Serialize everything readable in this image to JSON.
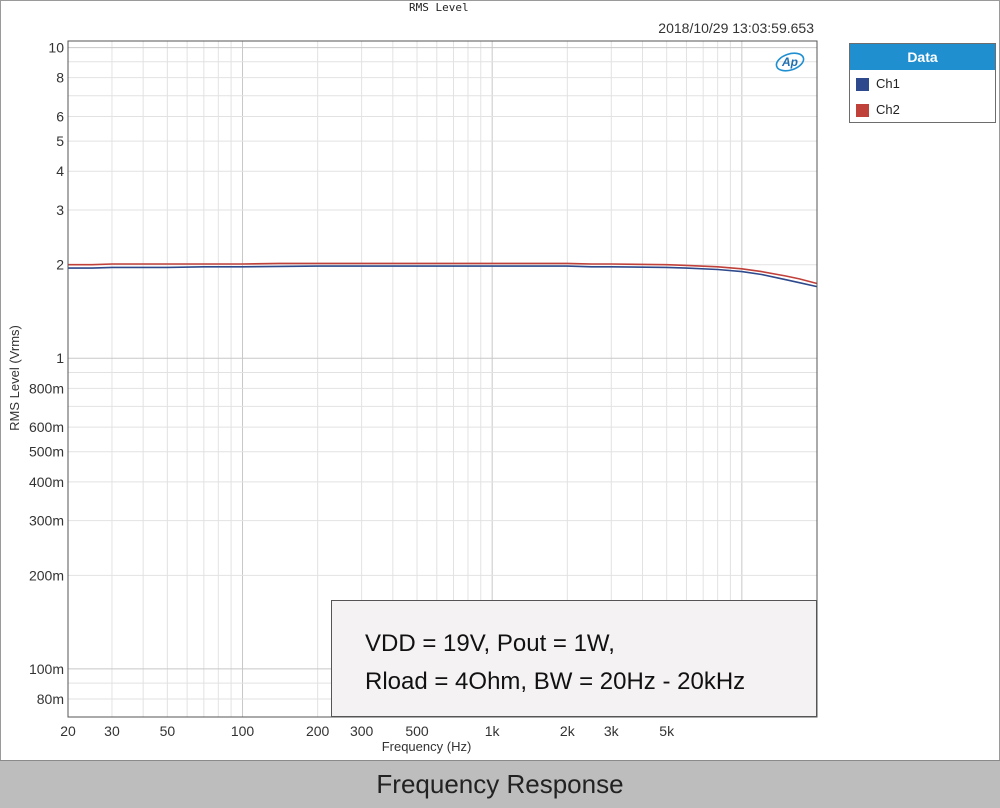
{
  "chart_data": {
    "type": "line",
    "title": "RMS Level",
    "timestamp": "2018/10/29 13:03:59.653",
    "xlabel": "Frequency (Hz)",
    "ylabel": "RMS Level (Vrms)",
    "xscale": "log",
    "yscale": "log",
    "xlim": [
      20,
      20000
    ],
    "ylim": [
      0.07,
      10.5
    ],
    "grid": true,
    "legend_placement": "right",
    "x_ticks": [
      {
        "value": 20,
        "label": "20"
      },
      {
        "value": 30,
        "label": "30"
      },
      {
        "value": 50,
        "label": "50"
      },
      {
        "value": 100,
        "label": "100"
      },
      {
        "value": 200,
        "label": "200"
      },
      {
        "value": 300,
        "label": "300"
      },
      {
        "value": 500,
        "label": "500"
      },
      {
        "value": 1000,
        "label": "1k"
      },
      {
        "value": 2000,
        "label": "2k"
      },
      {
        "value": 3000,
        "label": "3k"
      },
      {
        "value": 5000,
        "label": "5k"
      }
    ],
    "y_ticks": [
      {
        "value": 10,
        "label": "10"
      },
      {
        "value": 8,
        "label": "8"
      },
      {
        "value": 6,
        "label": "6"
      },
      {
        "value": 5,
        "label": "5"
      },
      {
        "value": 4,
        "label": "4"
      },
      {
        "value": 3,
        "label": "3"
      },
      {
        "value": 2,
        "label": "2"
      },
      {
        "value": 1,
        "label": "1"
      },
      {
        "value": 0.8,
        "label": "800m"
      },
      {
        "value": 0.6,
        "label": "600m"
      },
      {
        "value": 0.5,
        "label": "500m"
      },
      {
        "value": 0.4,
        "label": "400m"
      },
      {
        "value": 0.3,
        "label": "300m"
      },
      {
        "value": 0.2,
        "label": "200m"
      },
      {
        "value": 0.1,
        "label": "100m"
      },
      {
        "value": 0.08,
        "label": "80m"
      }
    ],
    "series": [
      {
        "name": "Ch1",
        "color": "#2e4a8c",
        "x": [
          20,
          25,
          30,
          50,
          70,
          100,
          200,
          500,
          1000,
          2000,
          2500,
          3000,
          5000,
          6000,
          8000,
          10000,
          12000,
          15000,
          17000,
          20000
        ],
        "y": [
          1.95,
          1.95,
          1.96,
          1.96,
          1.97,
          1.97,
          1.98,
          1.98,
          1.98,
          1.98,
          1.97,
          1.97,
          1.96,
          1.95,
          1.93,
          1.9,
          1.86,
          1.79,
          1.75,
          1.7
        ]
      },
      {
        "name": "Ch2",
        "color": "#c0403a",
        "x": [
          20,
          25,
          30,
          50,
          100,
          140,
          200,
          500,
          1000,
          2000,
          2500,
          3000,
          5000,
          6000,
          8000,
          10000,
          12000,
          15000,
          17000,
          20000
        ],
        "y": [
          2.0,
          2.0,
          2.01,
          2.01,
          2.01,
          2.02,
          2.02,
          2.02,
          2.02,
          2.02,
          2.01,
          2.01,
          2.0,
          1.99,
          1.97,
          1.94,
          1.9,
          1.84,
          1.8,
          1.74
        ]
      }
    ]
  },
  "legend": {
    "title": "Data"
  },
  "annotation": {
    "line1": "VDD = 19V, Pout = 1W,",
    "line2": "Rload = 4Ohm, BW = 20Hz - 20kHz"
  },
  "footer": {
    "caption": "Frequency Response"
  },
  "logo": {
    "text": "Ap"
  }
}
